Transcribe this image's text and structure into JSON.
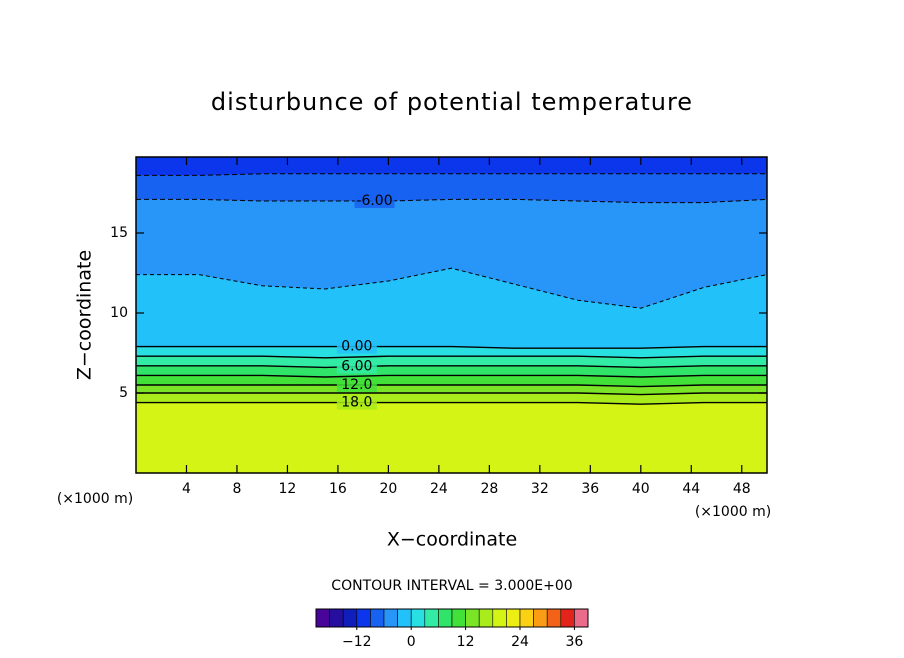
{
  "chart_data": {
    "type": "contour",
    "title": "disturbunce of potential temperature",
    "x_label": "X−coordinate",
    "y_label": "Z−coordinate",
    "x_unit": "(×1000 m)",
    "xlim": [
      0,
      50
    ],
    "ylim": [
      0,
      19.75
    ],
    "xticks": [
      4,
      8,
      12,
      16,
      20,
      24,
      28,
      32,
      36,
      40,
      44,
      48
    ],
    "yticks": [
      5,
      10,
      15
    ],
    "x": [
      0,
      5,
      10,
      15,
      20,
      25,
      30,
      35,
      40,
      45,
      50
    ],
    "contours": [
      {
        "level": 18,
        "label": "18.0",
        "y": [
          4.4,
          4.4,
          4.4,
          4.4,
          4.4,
          4.4,
          4.4,
          4.4,
          4.3,
          4.4,
          4.4
        ]
      },
      {
        "level": 15,
        "y": [
          5.0,
          5.0,
          5.0,
          5.0,
          5.0,
          5.0,
          5.0,
          5.0,
          4.9,
          5.0,
          5.0
        ]
      },
      {
        "level": 12,
        "label": "12.0",
        "y": [
          5.5,
          5.5,
          5.5,
          5.5,
          5.5,
          5.5,
          5.5,
          5.5,
          5.4,
          5.5,
          5.5
        ]
      },
      {
        "level": 9,
        "y": [
          6.1,
          6.1,
          6.1,
          6.0,
          6.1,
          6.1,
          6.1,
          6.1,
          6.0,
          6.1,
          6.1
        ]
      },
      {
        "level": 6,
        "label": "6.00",
        "y": [
          6.7,
          6.7,
          6.7,
          6.6,
          6.7,
          6.7,
          6.7,
          6.7,
          6.6,
          6.7,
          6.7
        ]
      },
      {
        "level": 3,
        "y": [
          7.3,
          7.3,
          7.3,
          7.2,
          7.3,
          7.3,
          7.3,
          7.3,
          7.2,
          7.3,
          7.3
        ]
      },
      {
        "level": 0,
        "label": "0.00",
        "y": [
          7.9,
          7.9,
          7.9,
          7.9,
          7.9,
          7.9,
          7.8,
          7.8,
          7.8,
          7.9,
          7.9
        ]
      },
      {
        "level": -3,
        "y": [
          12.4,
          12.4,
          11.7,
          11.5,
          12.0,
          12.8,
          11.8,
          10.8,
          10.3,
          11.6,
          12.4
        ]
      },
      {
        "level": -6,
        "label": "-6.00",
        "y": [
          17.1,
          17.1,
          17.0,
          17.0,
          17.0,
          17.1,
          17.1,
          17.0,
          16.9,
          16.9,
          17.1
        ]
      },
      {
        "level": -9,
        "y": [
          18.6,
          18.6,
          18.7,
          18.7,
          18.7,
          18.7,
          18.7,
          18.7,
          18.7,
          18.7,
          18.7
        ]
      }
    ],
    "contour_interval": {
      "value": 3,
      "label": "CONTOUR INTERVAL = 3.000E+00"
    },
    "colorbar": {
      "lim": [
        -21,
        39
      ],
      "ticks": [
        {
          "value": -12,
          "label": "−12"
        },
        0,
        12,
        24,
        36
      ]
    }
  }
}
